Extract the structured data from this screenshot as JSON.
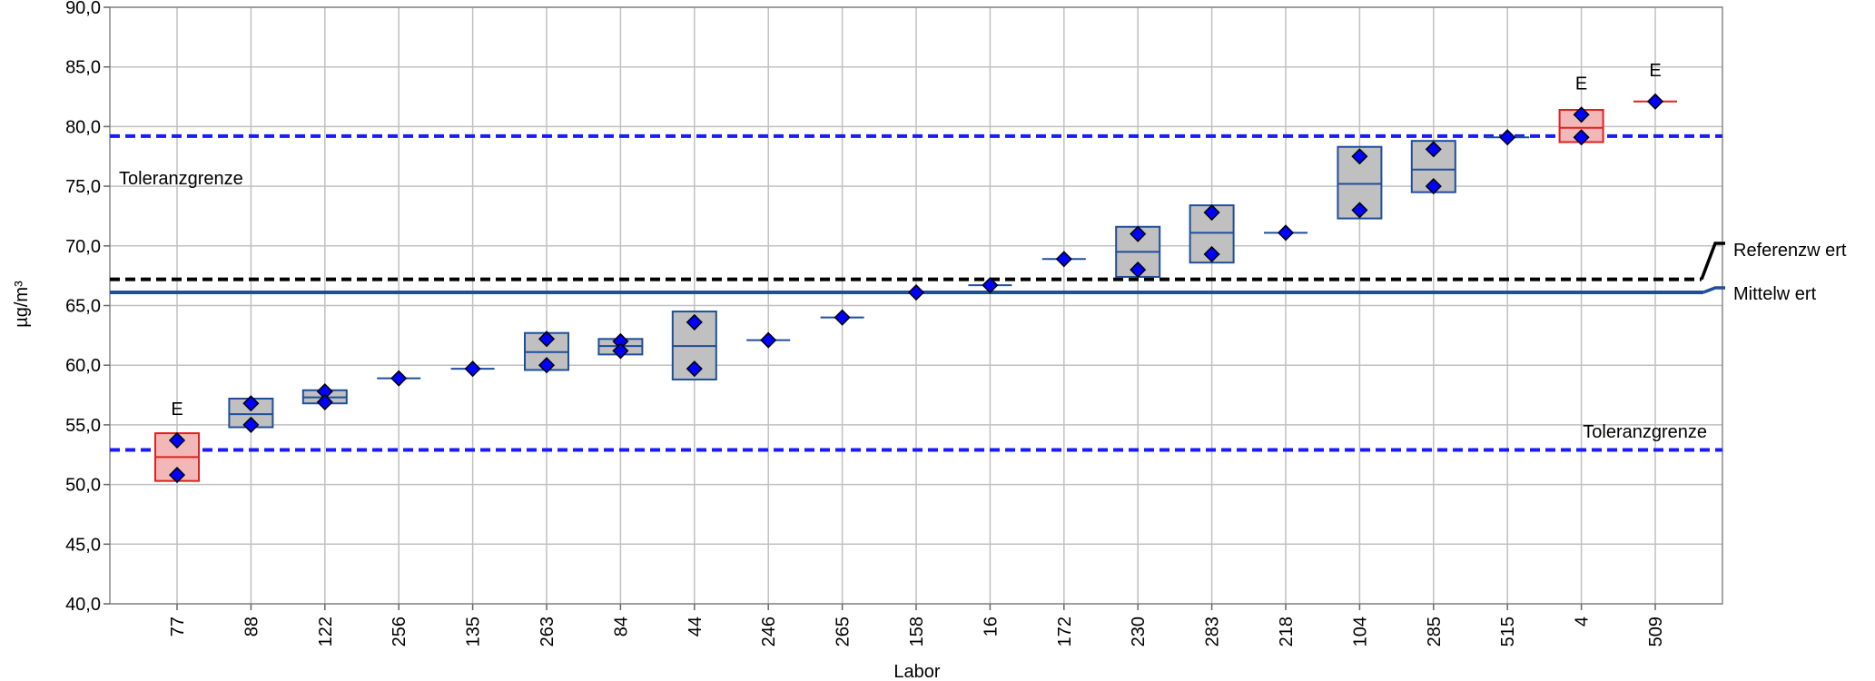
{
  "chart_data": {
    "type": "box",
    "xlabel": "Labor",
    "ylabel": "µg/m³",
    "ylim": [
      40,
      90
    ],
    "yticks": [
      "40,0",
      "45,0",
      "50,0",
      "55,0",
      "60,0",
      "65,0",
      "70,0",
      "75,0",
      "80,0",
      "85,0",
      "90,0"
    ],
    "grid": true,
    "categories": [
      "77",
      "88",
      "122",
      "256",
      "135",
      "263",
      "84",
      "44",
      "246",
      "265",
      "158",
      "16",
      "172",
      "230",
      "283",
      "218",
      "104",
      "285",
      "515",
      "4",
      "509"
    ],
    "labs": [
      {
        "lab": "77",
        "values": [
          53.7,
          50.8
        ],
        "low": 50.3,
        "high": 54.3,
        "median": 52.3,
        "flag": "E"
      },
      {
        "lab": "88",
        "values": [
          56.8,
          55.0
        ],
        "low": 54.8,
        "high": 57.2,
        "median": 55.9,
        "flag": ""
      },
      {
        "lab": "122",
        "values": [
          57.8,
          56.9
        ],
        "low": 56.8,
        "high": 57.9,
        "median": 57.3,
        "flag": ""
      },
      {
        "lab": "256",
        "values": [
          58.9
        ],
        "low": 58.9,
        "high": 58.9,
        "median": 58.9,
        "flag": ""
      },
      {
        "lab": "135",
        "values": [
          59.7
        ],
        "low": 59.7,
        "high": 59.7,
        "median": 59.7,
        "flag": ""
      },
      {
        "lab": "263",
        "values": [
          62.2,
          60.0
        ],
        "low": 59.6,
        "high": 62.7,
        "median": 61.1,
        "flag": ""
      },
      {
        "lab": "84",
        "values": [
          62.0,
          61.2
        ],
        "low": 60.9,
        "high": 62.2,
        "median": 61.6,
        "flag": ""
      },
      {
        "lab": "44",
        "values": [
          63.6,
          59.7
        ],
        "low": 58.8,
        "high": 64.5,
        "median": 61.6,
        "flag": ""
      },
      {
        "lab": "246",
        "values": [
          62.1
        ],
        "low": 62.1,
        "high": 62.1,
        "median": 62.1,
        "flag": ""
      },
      {
        "lab": "265",
        "values": [
          64.0
        ],
        "low": 64.0,
        "high": 64.0,
        "median": 64.0,
        "flag": ""
      },
      {
        "lab": "158",
        "values": [
          66.1
        ],
        "low": 66.1,
        "high": 66.1,
        "median": 66.1,
        "flag": ""
      },
      {
        "lab": "16",
        "values": [
          66.7
        ],
        "low": 66.7,
        "high": 66.7,
        "median": 66.7,
        "flag": ""
      },
      {
        "lab": "172",
        "values": [
          68.9
        ],
        "low": 68.9,
        "high": 68.9,
        "median": 68.9,
        "flag": ""
      },
      {
        "lab": "230",
        "values": [
          71.0,
          68.0
        ],
        "low": 67.4,
        "high": 71.6,
        "median": 69.5,
        "flag": ""
      },
      {
        "lab": "283",
        "values": [
          72.8,
          69.3
        ],
        "low": 68.6,
        "high": 73.4,
        "median": 71.1,
        "flag": ""
      },
      {
        "lab": "218",
        "values": [
          71.1
        ],
        "low": 71.1,
        "high": 71.1,
        "median": 71.1,
        "flag": ""
      },
      {
        "lab": "104",
        "values": [
          77.5,
          73.0
        ],
        "low": 72.3,
        "high": 78.3,
        "median": 75.2,
        "flag": ""
      },
      {
        "lab": "285",
        "values": [
          78.1,
          75.0
        ],
        "low": 74.5,
        "high": 78.8,
        "median": 76.4,
        "flag": ""
      },
      {
        "lab": "515",
        "values": [
          79.1
        ],
        "low": 79.1,
        "high": 79.1,
        "median": 79.1,
        "flag": ""
      },
      {
        "lab": "4",
        "values": [
          81.0,
          79.1
        ],
        "low": 78.7,
        "high": 81.4,
        "median": 79.9,
        "flag": "E"
      },
      {
        "lab": "509",
        "values": [
          82.1
        ],
        "low": 82.1,
        "high": 82.1,
        "median": 82.1,
        "flag": "E"
      }
    ],
    "reference_lines": {
      "referenzwert": {
        "label": "Referenzw ert",
        "value": 67.2
      },
      "mittelwert": {
        "label": "Mittelw ert",
        "value": 66.1
      },
      "toleranz_upper": {
        "label": "Toleranzgrenze",
        "value": 79.2
      },
      "toleranz_lower": {
        "label": "Toleranzgrenze",
        "value": 52.9
      }
    }
  },
  "colors": {
    "point": "#0000ff",
    "box_fill": "#c0c0c0",
    "box_stroke": "#1f4e9a",
    "flag_fill": "#f2b8b8",
    "flag_stroke": "#e02020",
    "tolerance": "#1a1aff",
    "mean": "#1f4e9a",
    "reference": "#000000",
    "grid": "#c0c0c0"
  }
}
